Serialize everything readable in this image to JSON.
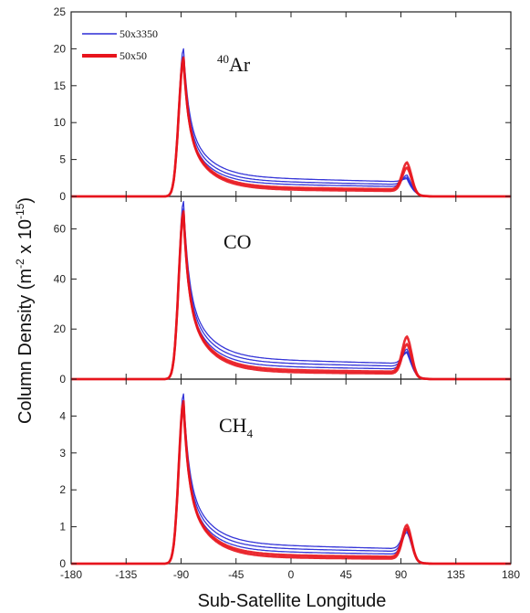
{
  "chart_data": {
    "type": "line",
    "ylabel": "Column Density (m",
    "ylabel_sup1": "-2",
    "ylabel_mid": " x 10",
    "ylabel_sup2": "-15",
    "ylabel_end": ")",
    "xlabel": "Sub-Satellite Longitude",
    "xlim": [
      -180,
      180
    ],
    "xticks": [
      "-180",
      "-135",
      "-90",
      "-45",
      "0",
      "45",
      "90",
      "135",
      "180"
    ],
    "legend": [
      {
        "label": "50x3350",
        "color": "#2b2bd6"
      },
      {
        "label": "50x50",
        "color": "#e8141c"
      }
    ],
    "panels": [
      {
        "title_sup": "40",
        "title_main": "Ar",
        "title_sub": "",
        "ylim": [
          0,
          25
        ],
        "yticks": [
          "0",
          "5",
          "10",
          "15",
          "20",
          "25"
        ],
        "series": [
          {
            "legend": "50x3350",
            "color": "#2b2bd6",
            "peak1": 20.0,
            "base": 2.7,
            "peak2": 2.4
          },
          {
            "legend": "50x3350",
            "color": "#2b2bd6",
            "peak1": 19.0,
            "base": 2.2,
            "peak2": 2.6
          },
          {
            "legend": "50x3350",
            "color": "#2b2bd6",
            "peak1": 18.0,
            "base": 1.8,
            "peak2": 2.9
          },
          {
            "legend": "50x50",
            "color": "#e8141c",
            "peak1": 18.5,
            "base": 1.3,
            "peak2": 4.6
          },
          {
            "legend": "50x50",
            "color": "#e8141c",
            "peak1": 18.8,
            "base": 1.0,
            "peak2": 3.9
          }
        ]
      },
      {
        "title_sup": "",
        "title_main": "CO",
        "title_sub": "",
        "ylim": [
          0,
          73
        ],
        "yticks": [
          "0",
          "20",
          "40",
          "60"
        ],
        "series": [
          {
            "legend": "50x3350",
            "color": "#2b2bd6",
            "peak1": 71.0,
            "base": 8.5,
            "peak2": 10.5
          },
          {
            "legend": "50x3350",
            "color": "#2b2bd6",
            "peak1": 68.0,
            "base": 7.0,
            "peak2": 11.0
          },
          {
            "legend": "50x3350",
            "color": "#2b2bd6",
            "peak1": 65.0,
            "base": 5.5,
            "peak2": 12.0
          },
          {
            "legend": "50x50",
            "color": "#e8141c",
            "peak1": 66.0,
            "base": 4.0,
            "peak2": 17.0
          },
          {
            "legend": "50x50",
            "color": "#e8141c",
            "peak1": 67.0,
            "base": 3.0,
            "peak2": 14.0
          }
        ]
      },
      {
        "title_sup": "",
        "title_main": "CH",
        "title_sub": "4",
        "ylim": [
          0,
          5
        ],
        "yticks": [
          "0",
          "1",
          "2",
          "3",
          "4"
        ],
        "series": [
          {
            "legend": "50x3350",
            "color": "#2b2bd6",
            "peak1": 4.6,
            "base": 0.55,
            "peak2": 0.95
          },
          {
            "legend": "50x3350",
            "color": "#2b2bd6",
            "peak1": 4.4,
            "base": 0.45,
            "peak2": 0.9
          },
          {
            "legend": "50x3350",
            "color": "#2b2bd6",
            "peak1": 4.2,
            "base": 0.35,
            "peak2": 0.85
          },
          {
            "legend": "50x50",
            "color": "#e8141c",
            "peak1": 4.3,
            "base": 0.25,
            "peak2": 1.05
          },
          {
            "legend": "50x50",
            "color": "#e8141c",
            "peak1": 4.4,
            "base": 0.18,
            "peak2": 0.95
          }
        ]
      }
    ]
  }
}
